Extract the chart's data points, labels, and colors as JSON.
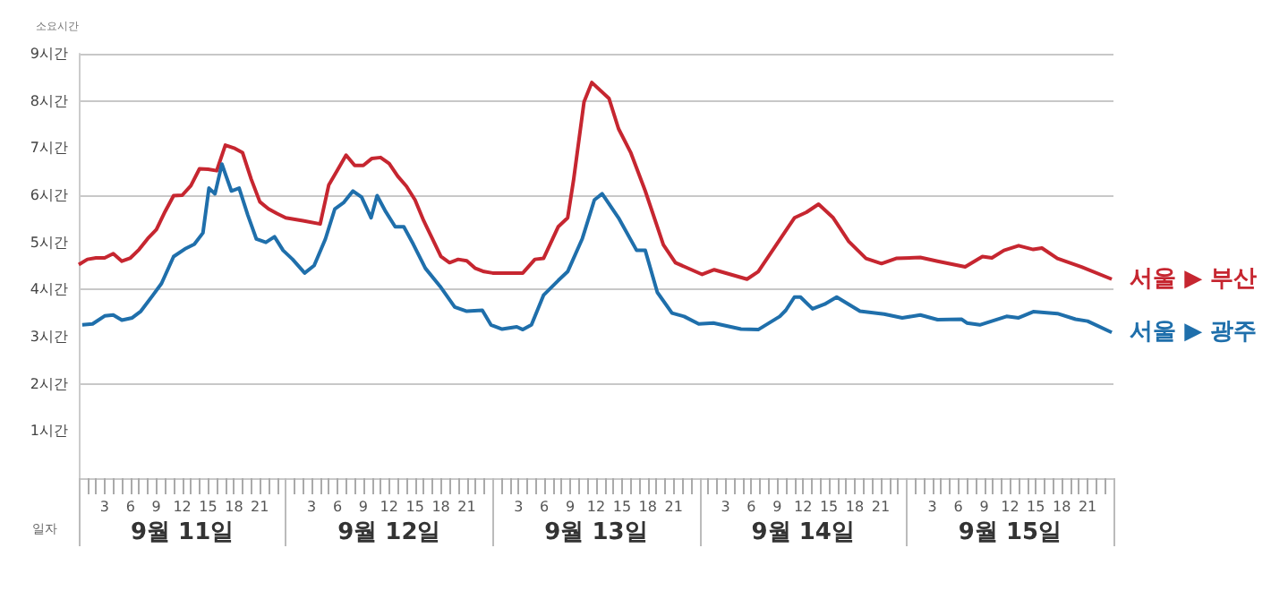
{
  "chart_data": {
    "type": "line",
    "xlabel": "일자",
    "ylabel": "소요시간",
    "annotations": [
      "9월 11일",
      "9월 12일",
      "9월 13일",
      "9월 14일",
      "9월 15일"
    ],
    "xlim": [
      "--09-11T00:00",
      "--09-16T00:00"
    ],
    "xticks": [
      {
        "value": "--09-11T03:00",
        "label": "3"
      },
      {
        "value": "--09-11T06:00",
        "label": "6"
      },
      {
        "value": "--09-11T09:00",
        "label": "9"
      },
      {
        "value": "--09-11T12:00",
        "label": "12"
      },
      {
        "value": "--09-11T15:00",
        "label": "15"
      },
      {
        "value": "--09-11T18:00",
        "label": "18"
      },
      {
        "value": "--09-11T21:00",
        "label": "21"
      },
      {
        "value": "--09-12T03:00",
        "label": "3"
      },
      {
        "value": "--09-12T06:00",
        "label": "6"
      },
      {
        "value": "--09-12T09:00",
        "label": "9"
      },
      {
        "value": "--09-12T12:00",
        "label": "12"
      },
      {
        "value": "--09-12T15:00",
        "label": "15"
      },
      {
        "value": "--09-12T18:00",
        "label": "18"
      },
      {
        "value": "--09-12T21:00",
        "label": "21"
      },
      {
        "value": "--09-13T03:00",
        "label": "3"
      },
      {
        "value": "--09-13T06:00",
        "label": "6"
      },
      {
        "value": "--09-13T09:00",
        "label": "9"
      },
      {
        "value": "--09-13T12:00",
        "label": "12"
      },
      {
        "value": "--09-13T15:00",
        "label": "15"
      },
      {
        "value": "--09-13T18:00",
        "label": "18"
      },
      {
        "value": "--09-13T21:00",
        "label": "21"
      },
      {
        "value": "--09-14T03:00",
        "label": "3"
      },
      {
        "value": "--09-14T06:00",
        "label": "6"
      },
      {
        "value": "--09-14T09:00",
        "label": "9"
      },
      {
        "value": "--09-14T12:00",
        "label": "12"
      },
      {
        "value": "--09-14T15:00",
        "label": "15"
      },
      {
        "value": "--09-14T18:00",
        "label": "18"
      },
      {
        "value": "--09-14T21:00",
        "label": "21"
      },
      {
        "value": "--09-15T03:00",
        "label": "3"
      },
      {
        "value": "--09-15T06:00",
        "label": "6"
      },
      {
        "value": "--09-15T09:00",
        "label": "9"
      },
      {
        "value": "--09-15T12:00",
        "label": "12"
      },
      {
        "value": "--09-15T15:00",
        "label": "15"
      },
      {
        "value": "--09-15T18:00",
        "label": "18"
      },
      {
        "value": "--09-15T21:00",
        "label": "21"
      }
    ],
    "ylim": [
      0,
      9
    ],
    "yticks": [
      {
        "value": 0,
        "label": null
      },
      {
        "value": 1,
        "label": "1시간"
      },
      {
        "value": 2,
        "label": "2시간"
      },
      {
        "value": 3,
        "label": "3시간"
      },
      {
        "value": 4,
        "label": "4시간"
      },
      {
        "value": 5,
        "label": "5시간"
      },
      {
        "value": 6,
        "label": "6시간"
      },
      {
        "value": 7,
        "label": "7시간"
      },
      {
        "value": 8,
        "label": "8시간"
      },
      {
        "value": 9,
        "label": "9시간"
      }
    ],
    "grid": "y",
    "series": [
      {
        "name": "서울 ▶ 부산",
        "color": "#c62630",
        "x": [
          "--09-11T00:00",
          "--09-11T01:00",
          "--09-11T02:00",
          "--09-11T03:00",
          "--09-11T04:00",
          "--09-11T05:00",
          "--09-11T06:00",
          "--09-11T07:00",
          "--09-11T08:00",
          "--09-11T09:00",
          "--09-11T10:00",
          "--09-11T11:00",
          "--09-11T12:00",
          "--09-11T13:00",
          "--09-11T14:00",
          "--09-11T15:00",
          "--09-11T16:00",
          "--09-11T17:00",
          "--09-11T18:00",
          "--09-11T19:00",
          "--09-11T20:00",
          "--09-11T21:00",
          "--09-11T22:00",
          "--09-11T23:00",
          "--09-12T00:00",
          "--09-12T02:00",
          "--09-12T04:00",
          "--09-12T05:00",
          "--09-12T06:00",
          "--09-12T07:00",
          "--09-12T08:00",
          "--09-12T09:00",
          "--09-12T10:00",
          "--09-12T11:00",
          "--09-12T12:00",
          "--09-12T13:00",
          "--09-12T14:00",
          "--09-12T15:00",
          "--09-12T16:00",
          "--09-12T17:00",
          "--09-12T18:00",
          "--09-12T19:00",
          "--09-12T20:00",
          "--09-12T21:00",
          "--09-12T22:00",
          "--09-12T23:00",
          "--09-13T00:00",
          "--09-13T03:30",
          "--09-13T04:54",
          "--09-13T05:54",
          "--09-13T07:36",
          "--09-13T08:42",
          "--09-13T09:24",
          "--09-13T10:36",
          "--09-13T11:30",
          "--09-13T13:30",
          "--09-13T14:36",
          "--09-13T16:00",
          "--09-13T17:42",
          "--09-13T19:48",
          "--09-13T21:12",
          "--09-14T00:18",
          "--09-14T01:42",
          "--09-14T05:30",
          "--09-14T06:48",
          "--09-14T08:54",
          "--09-14T11:00",
          "--09-14T12:24",
          "--09-14T13:48",
          "--09-14T15:30",
          "--09-14T17:18",
          "--09-14T19:18",
          "--09-14T21:06",
          "--09-14T22:48",
          "--09-15T01:36",
          "--09-15T03:36",
          "--09-15T06:48",
          "--09-15T08:48",
          "--09-15T09:54",
          "--09-15T11:18",
          "--09-15T13:00",
          "--09-15T14:42",
          "--09-15T15:42",
          "--09-15T17:30",
          "--09-15T20:18",
          "--09-15T23:48"
        ],
        "values": [
          4.53,
          4.64,
          4.67,
          4.67,
          4.76,
          4.6,
          4.67,
          4.85,
          5.08,
          5.27,
          5.65,
          5.99,
          6.0,
          6.2,
          6.56,
          6.55,
          6.52,
          7.06,
          7.0,
          6.9,
          6.34,
          5.86,
          5.71,
          5.61,
          5.52,
          5.46,
          5.39,
          6.22,
          6.53,
          6.85,
          6.63,
          6.63,
          6.78,
          6.8,
          6.67,
          6.4,
          6.19,
          5.9,
          5.46,
          5.08,
          4.7,
          4.57,
          4.64,
          4.61,
          4.45,
          4.38,
          4.35,
          4.35,
          4.64,
          4.66,
          5.33,
          5.52,
          6.34,
          7.98,
          8.39,
          8.05,
          7.41,
          6.91,
          6.09,
          4.95,
          4.57,
          4.32,
          4.42,
          4.22,
          4.38,
          4.95,
          5.52,
          5.64,
          5.81,
          5.52,
          5.02,
          4.66,
          4.55,
          4.66,
          4.68,
          4.6,
          4.48,
          4.7,
          4.67,
          4.83,
          4.93,
          4.85,
          4.88,
          4.66,
          4.48,
          4.22
        ]
      },
      {
        "name": "서울 ▶ 광주",
        "color": "#1f6fab",
        "x": [
          "--09-11T00:24",
          "--09-11T01:36",
          "--09-11T03:00",
          "--09-11T04:00",
          "--09-11T05:00",
          "--09-11T06:12",
          "--09-11T07:12",
          "--09-11T08:36",
          "--09-11T09:36",
          "--09-11T11:00",
          "--09-11T12:18",
          "--09-11T13:24",
          "--09-11T14:24",
          "--09-11T15:06",
          "--09-11T15:48",
          "--09-11T16:36",
          "--09-11T17:42",
          "--09-11T18:36",
          "--09-11T19:36",
          "--09-11T20:36",
          "--09-11T21:42",
          "--09-11T22:42",
          "--09-11T23:42",
          "--09-12T00:48",
          "--09-12T02:12",
          "--09-12T03:18",
          "--09-12T04:36",
          "--09-12T05:42",
          "--09-12T06:42",
          "--09-12T07:48",
          "--09-12T08:48",
          "--09-12T09:54",
          "--09-12T10:36",
          "--09-12T11:36",
          "--09-12T12:42",
          "--09-12T13:42",
          "--09-12T14:48",
          "--09-12T16:12",
          "--09-12T17:54",
          "--09-12T19:36",
          "--09-12T21:00",
          "--09-12T22:48",
          "--09-12T23:48",
          "--09-13T01:06",
          "--09-13T02:48",
          "--09-13T03:30",
          "--09-13T04:30",
          "--09-13T05:54",
          "--09-13T07:36",
          "--09-13T08:42",
          "--09-13T10:24",
          "--09-13T11:48",
          "--09-13T12:42",
          "--09-13T14:36",
          "--09-13T16:42",
          "--09-13T17:42",
          "--09-13T19:06",
          "--09-13T20:48",
          "--09-13T22:12",
          "--09-13T23:54",
          "--09-14T01:36",
          "--09-14T04:48",
          "--09-14T06:48",
          "--09-14T09:18",
          "--09-14T10:00",
          "--09-14T11:00",
          "--09-14T11:42",
          "--09-14T13:06",
          "--09-14T14:30",
          "--09-14T15:54",
          "--09-14T18:36",
          "--09-14T21:24",
          "--09-14T23:30",
          "--09-15T01:36",
          "--09-15T03:36",
          "--09-15T06:24",
          "--09-15T07:00",
          "--09-15T08:30",
          "--09-15T11:36",
          "--09-15T13:00",
          "--09-15T14:42",
          "--09-15T17:30",
          "--09-15T19:36",
          "--09-15T21:00",
          "--09-15T23:48"
        ],
        "values": [
          3.25,
          3.27,
          3.44,
          3.46,
          3.35,
          3.4,
          3.54,
          3.88,
          4.13,
          4.7,
          4.86,
          4.96,
          5.2,
          6.15,
          6.03,
          6.66,
          6.09,
          6.15,
          5.58,
          5.07,
          5.0,
          5.12,
          4.83,
          4.64,
          4.35,
          4.51,
          5.07,
          5.71,
          5.84,
          6.09,
          5.96,
          5.52,
          5.99,
          5.65,
          5.33,
          5.33,
          4.96,
          4.45,
          4.07,
          3.63,
          3.54,
          3.56,
          3.25,
          3.16,
          3.21,
          3.15,
          3.25,
          3.88,
          4.19,
          4.38,
          5.08,
          5.9,
          6.03,
          5.52,
          4.83,
          4.83,
          3.94,
          3.5,
          3.43,
          3.27,
          3.29,
          3.16,
          3.15,
          3.43,
          3.56,
          3.84,
          3.84,
          3.59,
          3.69,
          3.84,
          3.54,
          3.48,
          3.4,
          3.46,
          3.36,
          3.37,
          3.29,
          3.25,
          3.43,
          3.4,
          3.53,
          3.49,
          3.37,
          3.33,
          3.09
        ]
      }
    ]
  }
}
